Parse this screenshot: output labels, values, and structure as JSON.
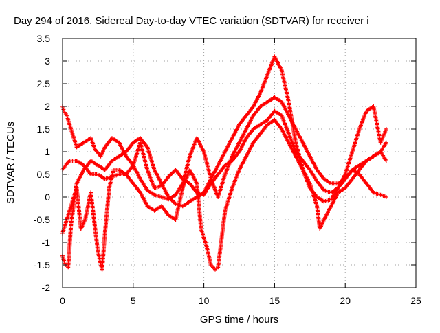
{
  "chart_data": {
    "type": "scatter",
    "title": "Day 294 of 2016, Sidereal Day-to-day VTEC variation (SDTVAR) for receiver i",
    "xlabel": "GPS time / hours",
    "ylabel": "SDTVAR / TECUs",
    "xlim": [
      0,
      25
    ],
    "ylim": [
      -2,
      3.5
    ],
    "xticks": [
      0,
      5,
      10,
      15,
      20,
      25
    ],
    "yticks": [
      -2,
      -1.5,
      -1,
      -0.5,
      0,
      0.5,
      1,
      1.5,
      2,
      2.5,
      3,
      3.5
    ],
    "grid": true,
    "marker": "+",
    "color": "#ff0000",
    "series": [
      {
        "x": [
          0.0,
          0.2,
          0.5,
          1.0,
          1.5,
          2.0,
          2.5,
          3.0,
          3.5,
          4.0,
          4.5,
          5.0,
          5.5,
          6.0,
          6.5,
          7.0,
          7.5,
          8.0,
          8.5,
          9.0,
          9.5,
          10.0,
          10.5,
          11.0,
          11.5,
          12.0,
          12.5,
          13.0,
          13.5,
          14.0,
          14.5,
          15.0,
          15.5,
          16.0,
          16.5,
          17.0,
          17.5,
          18.0,
          18.5,
          19.0,
          19.5,
          20.0,
          20.5,
          21.0,
          21.5,
          22.0,
          22.5,
          22.9
        ],
        "y": [
          0.6,
          0.7,
          0.8,
          0.8,
          0.7,
          0.5,
          0.5,
          0.4,
          0.45,
          0.5,
          0.5,
          0.7,
          1.2,
          0.6,
          0.2,
          0.25,
          0.45,
          0.6,
          0.4,
          0.3,
          0.1,
          0.05,
          0.3,
          0.5,
          0.7,
          0.8,
          1.0,
          1.3,
          1.5,
          1.6,
          1.7,
          1.9,
          1.8,
          1.4,
          1.0,
          0.8,
          0.6,
          0.35,
          0.15,
          0.1,
          0.2,
          0.4,
          0.6,
          0.7,
          0.8,
          0.9,
          1.0,
          1.2
        ]
      },
      {
        "x": [
          0.0,
          0.1,
          0.3,
          0.5,
          1.0,
          1.5,
          2.0,
          2.3,
          2.7,
          3.0,
          3.5,
          4.0,
          4.5,
          5.0,
          5.5,
          6.0,
          6.5,
          7.0,
          7.5,
          8.0,
          8.5,
          9.0,
          9.5,
          10.0,
          10.5,
          11.0,
          11.5,
          12.0,
          12.5,
          13.0,
          13.5,
          14.0,
          14.5,
          15.0,
          15.5,
          16.0,
          16.5,
          17.0,
          17.5,
          18.0,
          18.5,
          19.0,
          19.5,
          20.0,
          20.5,
          21.0,
          21.5,
          22.0,
          22.5,
          22.9
        ],
        "y": [
          2.0,
          1.9,
          1.8,
          1.6,
          1.1,
          1.2,
          1.3,
          1.05,
          0.9,
          1.1,
          1.3,
          1.2,
          0.9,
          0.7,
          0.4,
          0.15,
          0.05,
          0.0,
          -0.05,
          0.05,
          0.3,
          0.9,
          1.3,
          1.0,
          0.4,
          0.0,
          0.5,
          0.9,
          1.2,
          1.5,
          1.8,
          2.0,
          2.1,
          2.2,
          2.1,
          1.8,
          1.5,
          1.2,
          0.9,
          0.6,
          0.4,
          0.3,
          0.3,
          0.4,
          0.6,
          0.5,
          0.3,
          0.1,
          0.05,
          0.0
        ]
      },
      {
        "x": [
          0.0,
          0.2,
          0.4,
          0.6,
          1.0,
          1.5,
          2.0,
          2.5,
          3.0,
          3.5,
          4.0,
          4.5,
          5.0,
          5.5,
          6.0,
          6.5,
          7.0,
          7.5,
          8.0,
          8.5,
          9.0,
          9.5,
          10.0,
          10.5,
          11.0,
          11.5,
          12.0,
          12.5,
          13.0,
          13.5,
          14.0,
          14.5,
          15.0,
          15.5,
          16.0,
          16.5,
          17.0,
          17.5,
          18.0,
          18.5,
          19.0,
          19.5,
          20.0,
          20.5,
          21.0,
          21.5,
          22.0,
          22.5,
          22.9
        ],
        "y": [
          -1.3,
          -1.5,
          -1.55,
          -0.6,
          0.3,
          0.6,
          0.8,
          0.7,
          0.6,
          0.8,
          0.9,
          1.0,
          1.2,
          1.3,
          1.1,
          0.6,
          0.3,
          0.0,
          -0.15,
          -0.2,
          -0.1,
          0.0,
          0.1,
          0.4,
          0.7,
          1.0,
          1.3,
          1.6,
          1.8,
          2.0,
          2.3,
          2.7,
          3.1,
          2.8,
          2.1,
          1.2,
          0.6,
          0.2,
          0.0,
          -0.1,
          -0.05,
          0.2,
          0.5,
          1.0,
          1.5,
          1.9,
          2.0,
          1.2,
          1.5
        ]
      },
      {
        "x": [
          0.0,
          0.2,
          0.5,
          1.0,
          1.3,
          1.6,
          2.0,
          2.5,
          2.8,
          3.0,
          3.3,
          3.6,
          4.0,
          4.5,
          5.0,
          5.5,
          6.0,
          6.5,
          7.0,
          7.5,
          8.0,
          8.5,
          9.0,
          9.5,
          9.8,
          10.2,
          10.5,
          10.8,
          11.0,
          11.5,
          12.0,
          12.5,
          13.0,
          13.5,
          14.0,
          14.5,
          15.0,
          15.5,
          16.0,
          16.5,
          17.0,
          17.5,
          18.0,
          18.2,
          18.5,
          19.0,
          19.5,
          20.0,
          20.5,
          21.0,
          21.5,
          22.0,
          22.5,
          22.9
        ],
        "y": [
          -0.8,
          -0.6,
          -0.3,
          0.2,
          -0.7,
          -0.5,
          0.1,
          -1.2,
          -1.6,
          -0.8,
          0.2,
          0.6,
          0.6,
          0.5,
          0.3,
          0.1,
          -0.2,
          -0.3,
          -0.2,
          -0.4,
          -0.5,
          0.2,
          0.6,
          0.3,
          -0.7,
          -1.1,
          -1.5,
          -1.6,
          -1.55,
          -0.3,
          0.2,
          0.6,
          0.9,
          1.2,
          1.4,
          1.6,
          1.7,
          1.5,
          1.2,
          0.9,
          0.6,
          0.3,
          -0.2,
          -0.7,
          -0.5,
          -0.2,
          0.1,
          0.2,
          0.4,
          0.6,
          0.8,
          0.9,
          1.0,
          0.8
        ]
      }
    ]
  }
}
